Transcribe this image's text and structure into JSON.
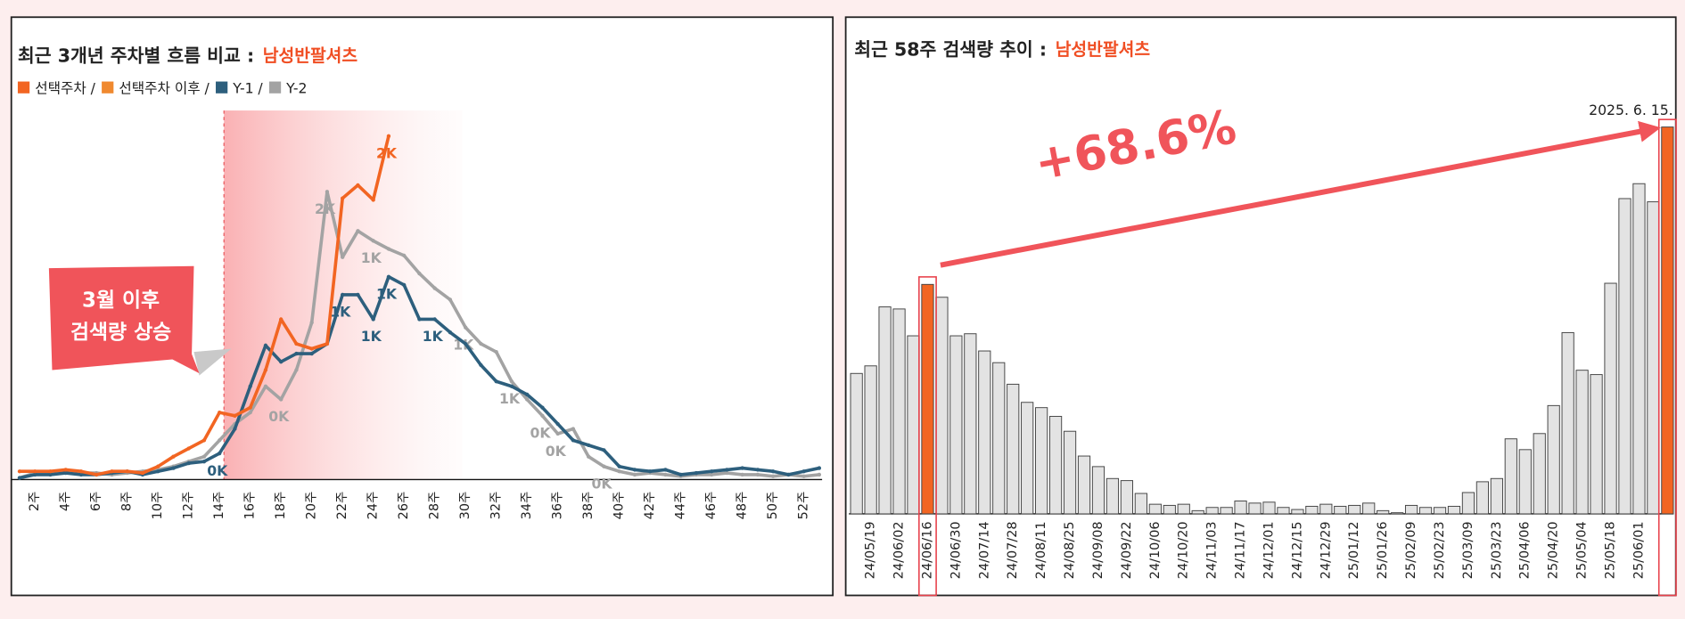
{
  "chart_data": [
    {
      "type": "line",
      "title": "최근 3개년 주차별 흐름 비교 :",
      "subject": "남성반팔셔츠",
      "legend_separator": "/",
      "annotation": [
        "3월 이후",
        "검색량 상승"
      ],
      "categories": [
        null,
        "2주",
        null,
        "4주",
        null,
        "6주",
        null,
        "8주",
        null,
        "10주",
        null,
        "12주",
        null,
        "14주",
        null,
        "16주",
        null,
        "18주",
        null,
        "20주",
        null,
        "22주",
        null,
        "24주",
        null,
        "26주",
        null,
        "28주",
        null,
        "30주",
        null,
        "32주",
        null,
        "34주",
        null,
        "36주",
        null,
        "38주",
        null,
        "40주",
        null,
        "42주",
        null,
        "44주",
        null,
        "46주",
        null,
        "48주",
        null,
        "50주",
        null,
        "52주",
        null
      ],
      "ylim": [
        0,
        2.3
      ],
      "series": [
        {
          "name": "선택주차",
          "color": "#f26522",
          "values": [
            0.05,
            0.05,
            0.05,
            0.06,
            0.05,
            0.03,
            0.05,
            0.05,
            0.04,
            0.08,
            0.14,
            0.19,
            0.24,
            0.41,
            0.39,
            0.44,
            0.67,
            0.98,
            0.83,
            0.8,
            0.83,
            1.72,
            1.8,
            1.71,
            2.1,
            null,
            null,
            null,
            null,
            null,
            null,
            null,
            null,
            null,
            null,
            null,
            null,
            null,
            null,
            null,
            null,
            null,
            null,
            null,
            null,
            null,
            null,
            null,
            null,
            null,
            null,
            null,
            null
          ],
          "value_labels": [
            null,
            null,
            null,
            null,
            null,
            null,
            null,
            null,
            null,
            null,
            null,
            null,
            null,
            null,
            null,
            null,
            null,
            null,
            null,
            null,
            null,
            null,
            null,
            null,
            "2K",
            null,
            null,
            null,
            null,
            null,
            null,
            null,
            null,
            null,
            null,
            null,
            null,
            null,
            null,
            null,
            null,
            null,
            null,
            null,
            null,
            null,
            null,
            null,
            null,
            null,
            null,
            null,
            null
          ]
        },
        {
          "name": "선택주차 이후",
          "color": "#f0892f",
          "values": [
            null,
            null,
            null,
            null,
            null,
            null,
            null,
            null,
            null,
            null,
            null,
            null,
            null,
            null,
            null,
            null,
            null,
            null,
            null,
            null,
            null,
            null,
            null,
            null,
            null,
            null,
            null,
            null,
            null,
            null,
            null,
            null,
            null,
            null,
            null,
            null,
            null,
            null,
            null,
            null,
            null,
            null,
            null,
            null,
            null,
            null,
            null,
            null,
            null,
            null,
            null,
            null,
            null
          ]
        },
        {
          "name": "Y-1",
          "color": "#2d5f7d",
          "values": [
            0.01,
            0.03,
            0.03,
            0.04,
            0.03,
            0.03,
            0.04,
            0.05,
            0.03,
            0.05,
            0.07,
            0.1,
            0.11,
            0.16,
            0.31,
            0.57,
            0.82,
            0.72,
            0.77,
            0.77,
            0.83,
            1.13,
            1.13,
            0.98,
            1.24,
            1.19,
            0.98,
            0.98,
            0.9,
            0.83,
            0.7,
            0.6,
            0.57,
            0.52,
            0.44,
            0.34,
            0.24,
            0.21,
            0.18,
            0.08,
            0.06,
            0.05,
            0.06,
            0.03,
            0.04,
            0.05,
            0.06,
            0.07,
            0.06,
            0.05,
            0.03,
            0.05,
            0.07
          ],
          "value_labels": [
            null,
            null,
            null,
            null,
            null,
            null,
            null,
            null,
            null,
            null,
            null,
            null,
            null,
            "0K",
            null,
            null,
            null,
            null,
            null,
            null,
            null,
            "1K",
            null,
            "1K",
            "1K",
            null,
            null,
            "1K",
            null,
            null,
            null,
            null,
            null,
            null,
            null,
            null,
            null,
            null,
            null,
            null,
            null,
            null,
            null,
            null,
            null,
            null,
            null,
            null,
            null,
            null,
            null,
            null,
            null
          ]
        },
        {
          "name": "Y-2",
          "color": "#a3a3a3",
          "values": [
            0.01,
            0.04,
            0.04,
            0.05,
            0.04,
            0.04,
            0.03,
            0.04,
            0.05,
            0.06,
            0.08,
            0.11,
            0.14,
            0.24,
            0.34,
            0.41,
            0.57,
            0.49,
            0.67,
            0.96,
            1.76,
            1.36,
            1.52,
            1.46,
            1.41,
            1.37,
            1.26,
            1.17,
            1.1,
            0.93,
            0.83,
            0.78,
            0.6,
            0.49,
            0.39,
            0.28,
            0.31,
            0.14,
            0.08,
            0.05,
            0.03,
            0.04,
            0.03,
            0.02,
            0.03,
            0.03,
            0.04,
            0.03,
            0.03,
            0.02,
            0.03,
            0.02,
            0.03
          ],
          "value_labels": [
            null,
            null,
            null,
            null,
            null,
            null,
            null,
            null,
            null,
            null,
            null,
            null,
            null,
            null,
            null,
            null,
            null,
            "0K",
            null,
            null,
            "2K",
            null,
            null,
            "1K",
            null,
            null,
            null,
            null,
            null,
            "1K",
            null,
            null,
            "1K",
            null,
            "0K",
            "0K",
            null,
            null,
            "0K",
            null,
            null,
            null,
            null,
            null,
            null,
            null,
            null,
            null,
            null,
            null,
            null,
            null,
            null
          ]
        }
      ]
    },
    {
      "type": "bar",
      "title": "최근 58주 검색량 추이 :",
      "subject": "남성반팔셔츠",
      "annotations": [
        "+68.6%",
        "2025. 6. 15."
      ],
      "categories": [
        null,
        "24/05/19",
        null,
        "24/06/02",
        null,
        "24/06/16",
        null,
        "24/06/30",
        null,
        "24/07/14",
        null,
        "24/07/28",
        null,
        "24/08/11",
        null,
        "24/08/25",
        null,
        "24/09/08",
        null,
        "24/09/22",
        null,
        "24/10/06",
        null,
        "24/10/20",
        null,
        "24/11/03",
        null,
        "24/11/17",
        null,
        "24/12/01",
        null,
        "24/12/15",
        null,
        "24/12/29",
        null,
        "25/01/12",
        null,
        "25/01/26",
        null,
        "25/02/09",
        null,
        "25/02/23",
        null,
        "25/03/09",
        null,
        "25/03/23",
        null,
        "25/04/06",
        null,
        "25/04/20",
        null,
        "25/05/04",
        null,
        "25/05/18",
        null,
        "25/06/01",
        null,
        null
      ],
      "values": [
        61.2,
        64.5,
        90.2,
        89.3,
        77.6,
        100,
        94.4,
        77.6,
        78.5,
        71.0,
        65.9,
        56.5,
        48.6,
        46.3,
        42.5,
        36.0,
        25.2,
        20.6,
        15.4,
        14.5,
        8.9,
        4.2,
        3.7,
        4.2,
        1.4,
        2.8,
        2.8,
        5.6,
        4.7,
        5.1,
        2.8,
        1.9,
        3.3,
        4.2,
        3.3,
        3.7,
        4.7,
        1.4,
        0.5,
        3.7,
        2.8,
        2.8,
        3.3,
        9.3,
        14.0,
        15.4,
        32.7,
        28.0,
        35.0,
        47.2,
        79.0,
        62.6,
        60.7,
        100.5,
        137.4,
        143.9,
        136.0,
        168.6
      ],
      "color": "#e3e3e3",
      "highlight_color": "#f26522",
      "highlight": [
        5,
        57
      ],
      "ylim": [
        0,
        180
      ]
    }
  ]
}
